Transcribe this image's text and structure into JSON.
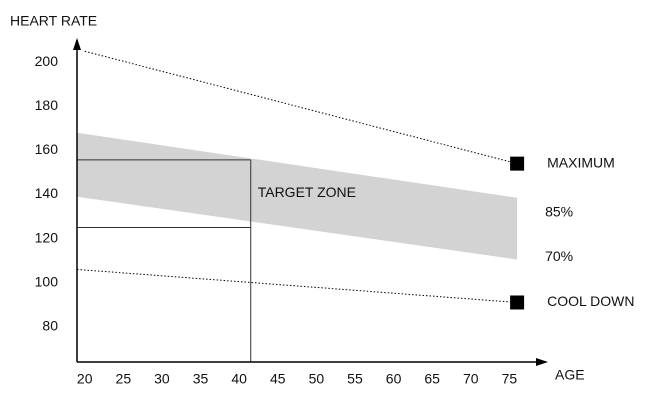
{
  "chart_data": {
    "type": "line",
    "ylabel": "HEART RATE",
    "xlabel": "AGE",
    "xlim": [
      19,
      80
    ],
    "ylim": [
      64,
      211
    ],
    "xticks": [
      20,
      25,
      30,
      35,
      40,
      45,
      50,
      55,
      60,
      65,
      70,
      75
    ],
    "yticks": [
      80,
      100,
      120,
      140,
      160,
      180,
      200
    ],
    "series": [
      {
        "name": "MAXIMUM",
        "color": "#000000",
        "x": [
          20,
          76
        ],
        "values": [
          205,
          154
        ],
        "line": "dotted",
        "marker": "square"
      },
      {
        "name": "85%",
        "color": "#d3d3d3",
        "x": [
          19,
          76
        ],
        "values": [
          168,
          138.5
        ]
      },
      {
        "name": "70%",
        "color": "#d3d3d3",
        "x": [
          19,
          76
        ],
        "values": [
          139,
          110.5
        ]
      },
      {
        "name": "COOL DOWN",
        "color": "#000000",
        "x": [
          19,
          76
        ],
        "values": [
          106,
          91
        ],
        "line": "dotted",
        "marker": "square"
      }
    ],
    "band": [
      1,
      2
    ],
    "annotation": {
      "text": "TARGET ZONE",
      "x": 41.5,
      "levels": [
        155.7,
        125
      ]
    }
  }
}
